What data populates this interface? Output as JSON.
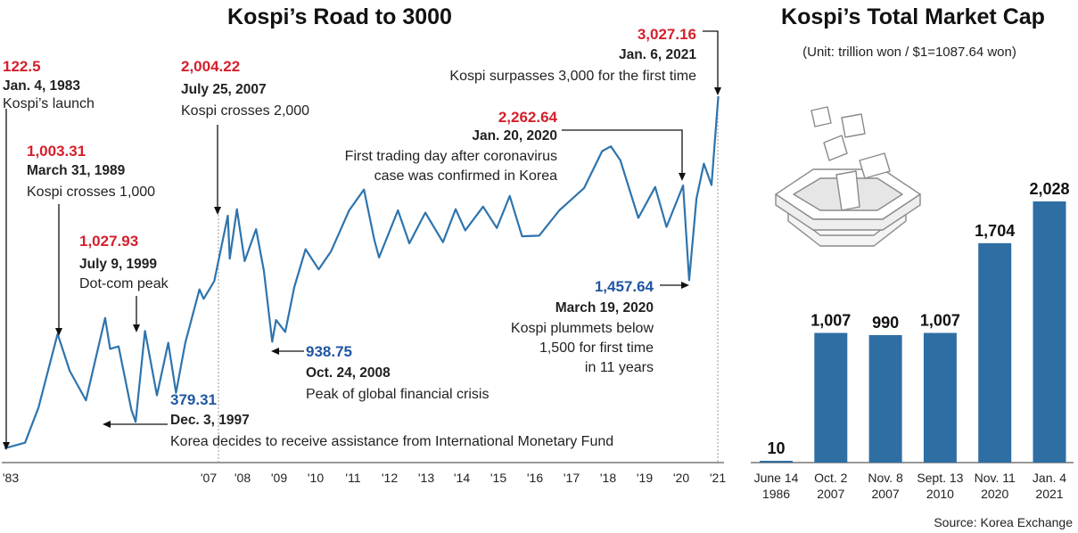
{
  "chart_data": [
    {
      "type": "line",
      "title": "Kospi’s Road to 3000",
      "x_ticks": [
        "'83",
        "'07",
        "'08",
        "'09",
        "'10",
        "'11",
        "'12",
        "'13",
        "'14",
        "'15",
        "'16",
        "'17",
        "'18",
        "'19",
        "'20",
        "'21"
      ],
      "line_color": "#2e74ad",
      "series": [
        {
          "points": [
            [
              "1983-01-04",
              122.5
            ],
            [
              "1985-06-01",
              160
            ],
            [
              "1987-01-01",
              400
            ],
            [
              "1989-03-31",
              1003.31
            ],
            [
              "1990-09-01",
              700
            ],
            [
              "1992-08-01",
              459
            ],
            [
              "1994-11-01",
              1138
            ],
            [
              "1995-06-01",
              880
            ],
            [
              "1996-06-01",
              900
            ],
            [
              "1997-12-03",
              379.31
            ],
            [
              "1998-06-01",
              300
            ],
            [
              "1999-07-09",
              1027.93
            ],
            [
              "2000-12-01",
              500
            ],
            [
              "2002-04-01",
              930
            ],
            [
              "2003-03-01",
              520
            ],
            [
              "2004-04-01",
              930
            ],
            [
              "2005-12-01",
              1380
            ],
            [
              "2006-06-01",
              1300
            ],
            [
              "2007-03-01",
              1450
            ],
            [
              "2007-07-25",
              2004.22
            ],
            [
              "2007-08-16",
              1640
            ],
            [
              "2007-11-01",
              2060
            ],
            [
              "2008-01-22",
              1620
            ],
            [
              "2008-05-15",
              1890
            ],
            [
              "2008-08-01",
              1540
            ],
            [
              "2008-10-24",
              938.75
            ],
            [
              "2008-12-01",
              1120
            ],
            [
              "2009-03-02",
              1020
            ],
            [
              "2009-06-01",
              1400
            ],
            [
              "2009-09-22",
              1720
            ],
            [
              "2010-02-01",
              1550
            ],
            [
              "2010-06-01",
              1700
            ],
            [
              "2010-12-01",
              2050
            ],
            [
              "2011-04-27",
              2228
            ],
            [
              "2011-08-09",
              1800
            ],
            [
              "2011-09-26",
              1650
            ],
            [
              "2012-04-01",
              2050
            ],
            [
              "2012-07-24",
              1770
            ],
            [
              "2013-01-01",
              2030
            ],
            [
              "2013-06-25",
              1780
            ],
            [
              "2013-10-30",
              2060
            ],
            [
              "2014-02-04",
              1880
            ],
            [
              "2014-07-30",
              2082
            ],
            [
              "2014-12-15",
              1900
            ],
            [
              "2015-04-23",
              2173
            ],
            [
              "2015-08-24",
              1830
            ],
            [
              "2016-02-12",
              1835
            ],
            [
              "2016-09-01",
              2050
            ],
            [
              "2017-05-04",
              2240
            ],
            [
              "2017-11-02",
              2557
            ],
            [
              "2018-01-29",
              2598
            ],
            [
              "2018-05-01",
              2480
            ],
            [
              "2018-10-29",
              1985
            ],
            [
              "2019-04-15",
              2250
            ],
            [
              "2019-08-06",
              1909
            ],
            [
              "2020-01-20",
              2262.64
            ],
            [
              "2020-03-19",
              1457.64
            ],
            [
              "2020-06-01",
              2150
            ],
            [
              "2020-08-14",
              2450
            ],
            [
              "2020-10-30",
              2267
            ],
            [
              "2020-12-01",
              2630
            ],
            [
              "2021-01-06",
              3027.16
            ]
          ]
        }
      ],
      "annotations": [
        {
          "value": "122.5",
          "date": "Jan. 4, 1983",
          "text": [
            "Kospi’s launch"
          ],
          "color": "red"
        },
        {
          "value": "1,003.31",
          "date": "March 31, 1989",
          "text": [
            "Kospi crosses 1,000"
          ],
          "color": "red"
        },
        {
          "value": "1,027.93",
          "date": "July 9, 1999",
          "text": [
            "Dot-com peak"
          ],
          "color": "red"
        },
        {
          "value": "2,004.22",
          "date": "July 25, 2007",
          "text": [
            "Kospi crosses 2,000"
          ],
          "color": "red"
        },
        {
          "value": "379.31",
          "date": "Dec. 3, 1997",
          "text": [
            "Korea decides to receive assistance from International Monetary Fund"
          ],
          "color": "blue"
        },
        {
          "value": "938.75",
          "date": "Oct. 24, 2008",
          "text": [
            "Peak of global financial crisis"
          ],
          "color": "blue"
        },
        {
          "value": "2,262.64",
          "date": "Jan. 20, 2020",
          "text": [
            "First trading day after coronavirus",
            "case was confirmed in Korea"
          ],
          "color": "red"
        },
        {
          "value": "1,457.64",
          "date": "March 19, 2020",
          "text": [
            "Kospi plummets below",
            "1,500 for first time",
            "in 11 years"
          ],
          "color": "blue"
        },
        {
          "value": "3,027.16",
          "date": "Jan. 6, 2021",
          "text": [
            "Kospi surpasses 3,000 for the first time"
          ],
          "color": "red"
        }
      ]
    },
    {
      "type": "bar",
      "title": "Kospi’s Total Market Cap",
      "subtitle": "(Unit: trillion won / $1=1087.64 won)",
      "categories": [
        [
          "June 14",
          "1986"
        ],
        [
          "Oct. 2",
          "2007"
        ],
        [
          "Nov. 8",
          "2007"
        ],
        [
          "Sept. 13",
          "2010"
        ],
        [
          "Nov. 11",
          "2020"
        ],
        [
          "Jan. 4",
          "2021"
        ]
      ],
      "values": [
        10,
        1007,
        990,
        1007,
        1704,
        2028
      ],
      "value_labels": [
        "10",
        "1,007",
        "990",
        "1,007",
        "1,704",
        "2,028"
      ],
      "bar_color": "#2e6ea3",
      "ylim": [
        0,
        2028
      ],
      "source": "Source: Korea Exchange"
    }
  ]
}
